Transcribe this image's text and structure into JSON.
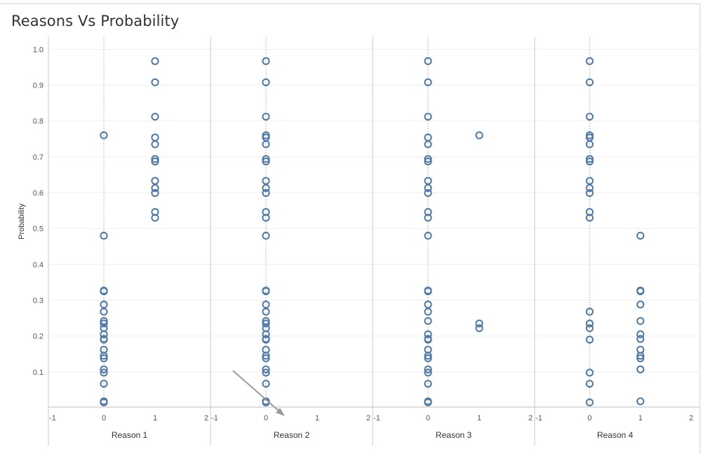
{
  "title": "Reasons Vs Probability",
  "chart_data": {
    "type": "scatter",
    "title": "Reasons Vs Probability",
    "ylabel": "Probability",
    "ylim": [
      0,
      1.03
    ],
    "yticks": [
      "0.1",
      "0.2",
      "0.3",
      "0.4",
      "0.5",
      "0.6",
      "0.7",
      "0.8",
      "0.9",
      "1.0"
    ],
    "xlim": [
      -1,
      2
    ],
    "xticks": [
      "-1",
      "0",
      "1",
      "2"
    ],
    "marker": "open-circle",
    "marker_color": "#4e79a7",
    "annotation": "gray arrow pointing at x=0 under Reason 2",
    "panels": [
      {
        "name": "Reason 1",
        "points": [
          {
            "x": 0,
            "y": [
              0.76,
              0.48,
              0.327,
              0.325,
              0.288,
              0.268,
              0.242,
              0.235,
              0.222,
              0.205,
              0.192,
              0.19,
              0.162,
              0.145,
              0.138,
              0.107,
              0.098,
              0.067,
              0.018,
              0.015
            ]
          },
          {
            "x": 1,
            "y": [
              0.967,
              0.908,
              0.812,
              0.754,
              0.735,
              0.694,
              0.687,
              0.633,
              0.613,
              0.599,
              0.546,
              0.53
            ]
          }
        ]
      },
      {
        "name": "Reason 2",
        "points": [
          {
            "x": 0,
            "y": [
              0.967,
              0.908,
              0.812,
              0.76,
              0.754,
              0.735,
              0.694,
              0.687,
              0.633,
              0.613,
              0.599,
              0.546,
              0.53,
              0.48,
              0.327,
              0.325,
              0.288,
              0.268,
              0.242,
              0.235,
              0.222,
              0.205,
              0.192,
              0.19,
              0.162,
              0.145,
              0.138,
              0.107,
              0.098,
              0.067,
              0.018,
              0.015
            ]
          }
        ]
      },
      {
        "name": "Reason 3",
        "points": [
          {
            "x": 0,
            "y": [
              0.967,
              0.908,
              0.812,
              0.754,
              0.735,
              0.694,
              0.687,
              0.633,
              0.613,
              0.599,
              0.546,
              0.53,
              0.48,
              0.327,
              0.325,
              0.288,
              0.268,
              0.242,
              0.205,
              0.192,
              0.19,
              0.162,
              0.145,
              0.138,
              0.107,
              0.098,
              0.067,
              0.018,
              0.015
            ]
          },
          {
            "x": 1,
            "y": [
              0.76,
              0.235,
              0.222
            ]
          }
        ]
      },
      {
        "name": "Reason 4",
        "points": [
          {
            "x": 0,
            "y": [
              0.967,
              0.908,
              0.812,
              0.76,
              0.754,
              0.735,
              0.694,
              0.687,
              0.633,
              0.613,
              0.599,
              0.546,
              0.53,
              0.268,
              0.235,
              0.222,
              0.19,
              0.098,
              0.067,
              0.015
            ]
          },
          {
            "x": 1,
            "y": [
              0.48,
              0.327,
              0.325,
              0.288,
              0.242,
              0.205,
              0.192,
              0.162,
              0.145,
              0.138,
              0.107,
              0.018
            ]
          }
        ]
      }
    ]
  }
}
